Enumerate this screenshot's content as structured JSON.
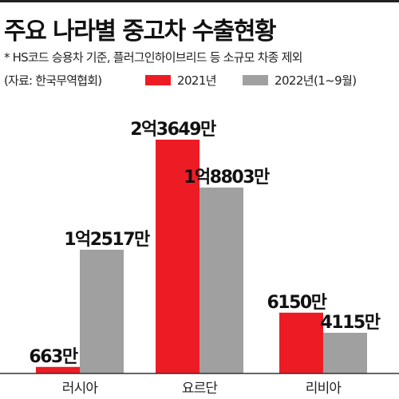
{
  "title": "주요 나라별 중고차 수출현황",
  "note": "* HS코드 승용차 기준, 플러그인하이브리드 등 소규모 차종 제외",
  "source": "(자료: 한국무역협회)",
  "colors": {
    "series_2021": "#ed1c24",
    "series_2022": "#a0a0a0"
  },
  "chart_data": {
    "type": "bar",
    "title": "주요 나라별 중고차 수출현황",
    "categories": [
      "러시아",
      "요르단",
      "리비아"
    ],
    "series": [
      {
        "name": "2021년",
        "values": [
          6630000,
          236490000,
          61500000
        ],
        "labels": [
          "663만",
          "2억3649만",
          "6150만"
        ]
      },
      {
        "name": "2022년(1~9월)",
        "values": [
          125170000,
          188030000,
          41150000
        ],
        "labels": [
          "1억2517만",
          "1억8803만",
          "4115만"
        ]
      }
    ],
    "xlabel": "",
    "ylabel": "",
    "ylim": [
      0,
      236490000
    ],
    "grid": false,
    "legend": "top-right"
  }
}
